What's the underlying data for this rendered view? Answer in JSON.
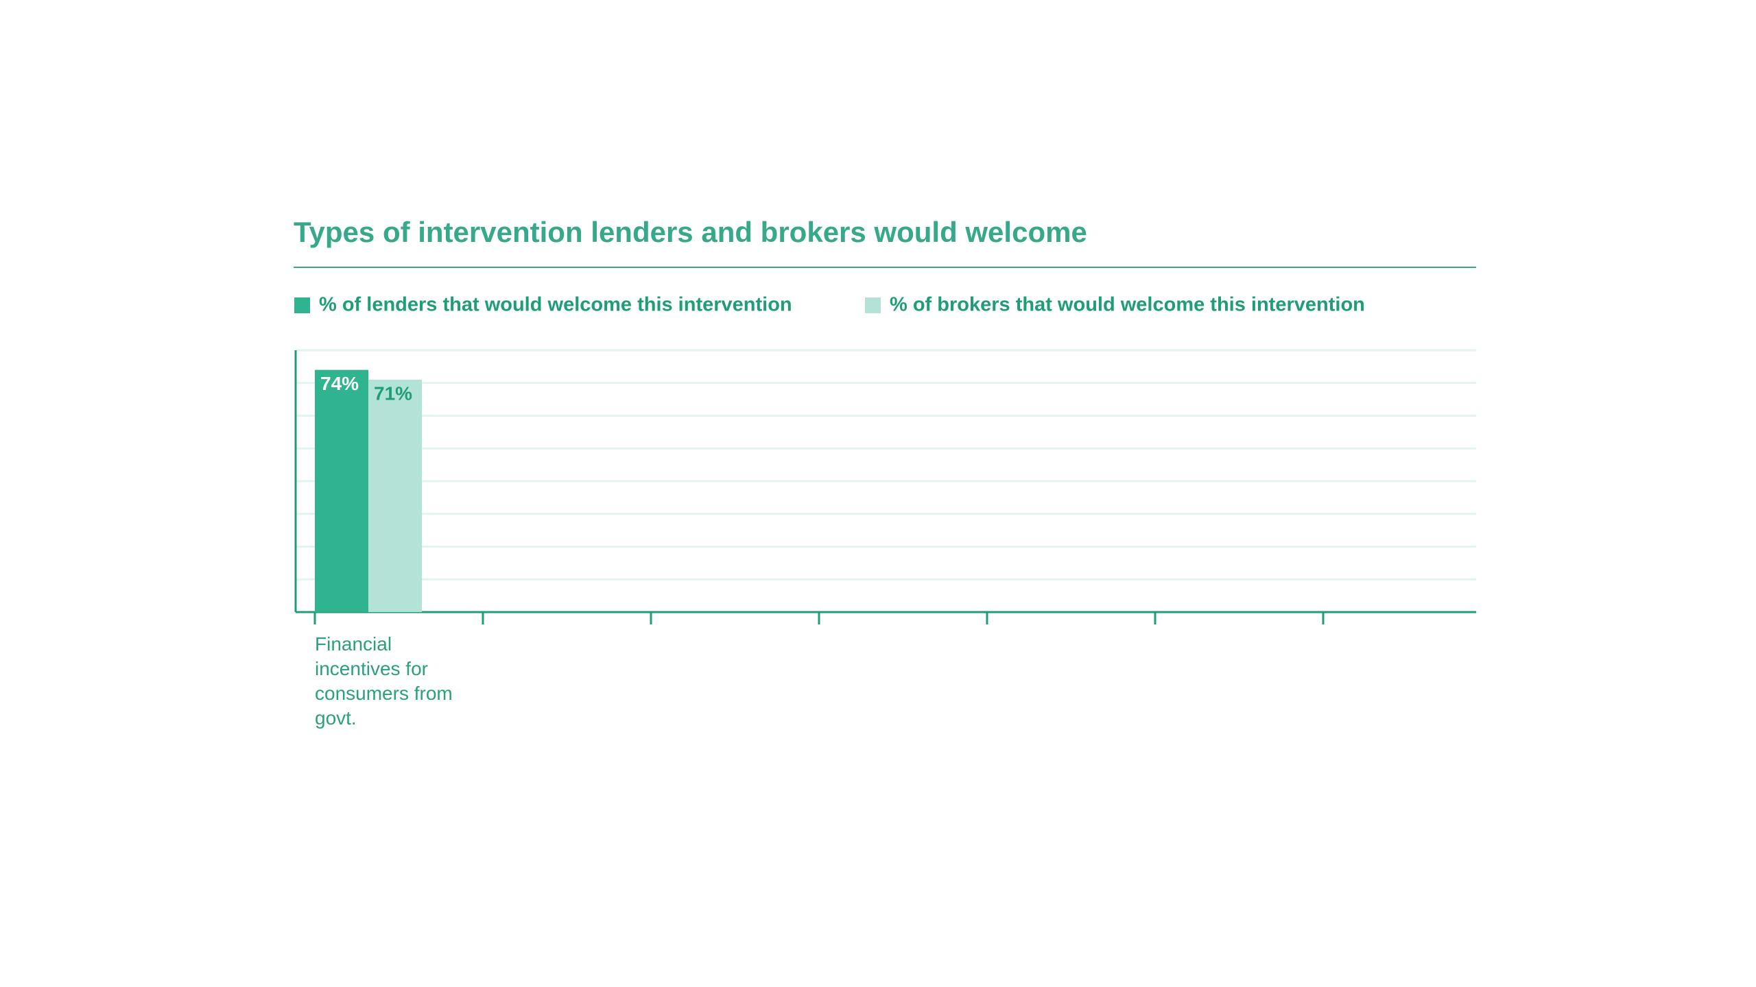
{
  "chart_data": {
    "type": "bar",
    "title": "Types of intervention lenders and brokers would welcome",
    "categories": [
      "Financial incentives for consumers from govt.",
      null,
      null,
      null,
      null,
      null,
      null
    ],
    "series": [
      {
        "name": "% of lenders that would welcome this intervention",
        "color": "#30b38f",
        "values": [
          74,
          null,
          null,
          null,
          null,
          null,
          null
        ],
        "value_labels": [
          "74%",
          null,
          null,
          null,
          null,
          null,
          null
        ]
      },
      {
        "name": "% of brokers that would welcome this intervention",
        "color": "#b3e3d6",
        "values": [
          71,
          null,
          null,
          null,
          null,
          null,
          null
        ],
        "value_labels": [
          "71%",
          null,
          null,
          null,
          null,
          null,
          null
        ]
      }
    ],
    "ylim": [
      0,
      80
    ],
    "yticks": [
      0,
      10,
      20,
      30,
      40,
      50,
      60,
      70,
      80
    ],
    "grid": true
  }
}
